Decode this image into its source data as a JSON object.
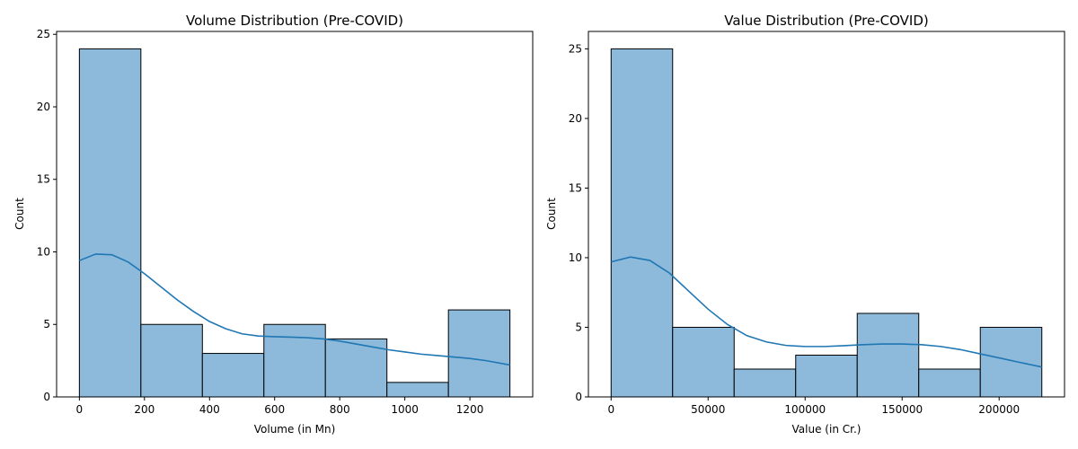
{
  "chart_data": [
    {
      "type": "bar",
      "title": "Volume Distribution (Pre-COVID)",
      "xlabel": "Volume (in Mn)",
      "ylabel": "Count",
      "bin_edges": [
        0,
        189,
        378,
        567,
        756,
        945,
        1134,
        1323
      ],
      "values": [
        24,
        5,
        3,
        5,
        4,
        1,
        6
      ],
      "xlim": [
        -70,
        1393
      ],
      "ylim": [
        0,
        25.2
      ],
      "xticks": [
        0,
        200,
        400,
        600,
        800,
        1000,
        1200
      ],
      "yticks": [
        0,
        5,
        10,
        15,
        20,
        25
      ],
      "kde": {
        "x": [
          0,
          50,
          100,
          150,
          200,
          250,
          300,
          350,
          400,
          450,
          500,
          550,
          600,
          650,
          700,
          750,
          800,
          850,
          900,
          950,
          1000,
          1050,
          1100,
          1150,
          1200,
          1250,
          1323
        ],
        "y": [
          9.4,
          9.85,
          9.8,
          9.3,
          8.5,
          7.6,
          6.7,
          5.9,
          5.2,
          4.7,
          4.35,
          4.2,
          4.15,
          4.12,
          4.08,
          4.0,
          3.85,
          3.65,
          3.45,
          3.25,
          3.1,
          2.95,
          2.85,
          2.75,
          2.65,
          2.5,
          2.2
        ]
      },
      "colors": {
        "bar": "#8db9db",
        "edge": "#000000",
        "kde": "#1f77b4"
      },
      "grid": false,
      "legend": false
    },
    {
      "type": "bar",
      "title": "Value Distribution (Pre-COVID)",
      "xlabel": "Value (in Cr.)",
      "ylabel": "Count",
      "bin_edges": [
        0,
        31714,
        63428,
        95142,
        126856,
        158570,
        190284,
        222000
      ],
      "values": [
        25,
        5,
        2,
        3,
        6,
        2,
        5
      ],
      "xlim": [
        -11700,
        233700
      ],
      "ylim": [
        0,
        26.25
      ],
      "xticks": [
        0,
        50000,
        100000,
        150000,
        200000
      ],
      "yticks": [
        0,
        5,
        10,
        15,
        20,
        25
      ],
      "kde": {
        "x": [
          0,
          10000,
          20000,
          30000,
          40000,
          50000,
          60000,
          70000,
          80000,
          90000,
          100000,
          110000,
          120000,
          130000,
          140000,
          150000,
          160000,
          170000,
          180000,
          190000,
          200000,
          210000,
          222000
        ],
        "y": [
          9.7,
          10.05,
          9.8,
          8.9,
          7.6,
          6.3,
          5.2,
          4.4,
          3.95,
          3.7,
          3.62,
          3.62,
          3.68,
          3.75,
          3.8,
          3.8,
          3.75,
          3.62,
          3.4,
          3.1,
          2.8,
          2.5,
          2.15
        ]
      },
      "colors": {
        "bar": "#8db9db",
        "edge": "#000000",
        "kde": "#1f77b4"
      },
      "grid": false,
      "legend": false
    }
  ]
}
